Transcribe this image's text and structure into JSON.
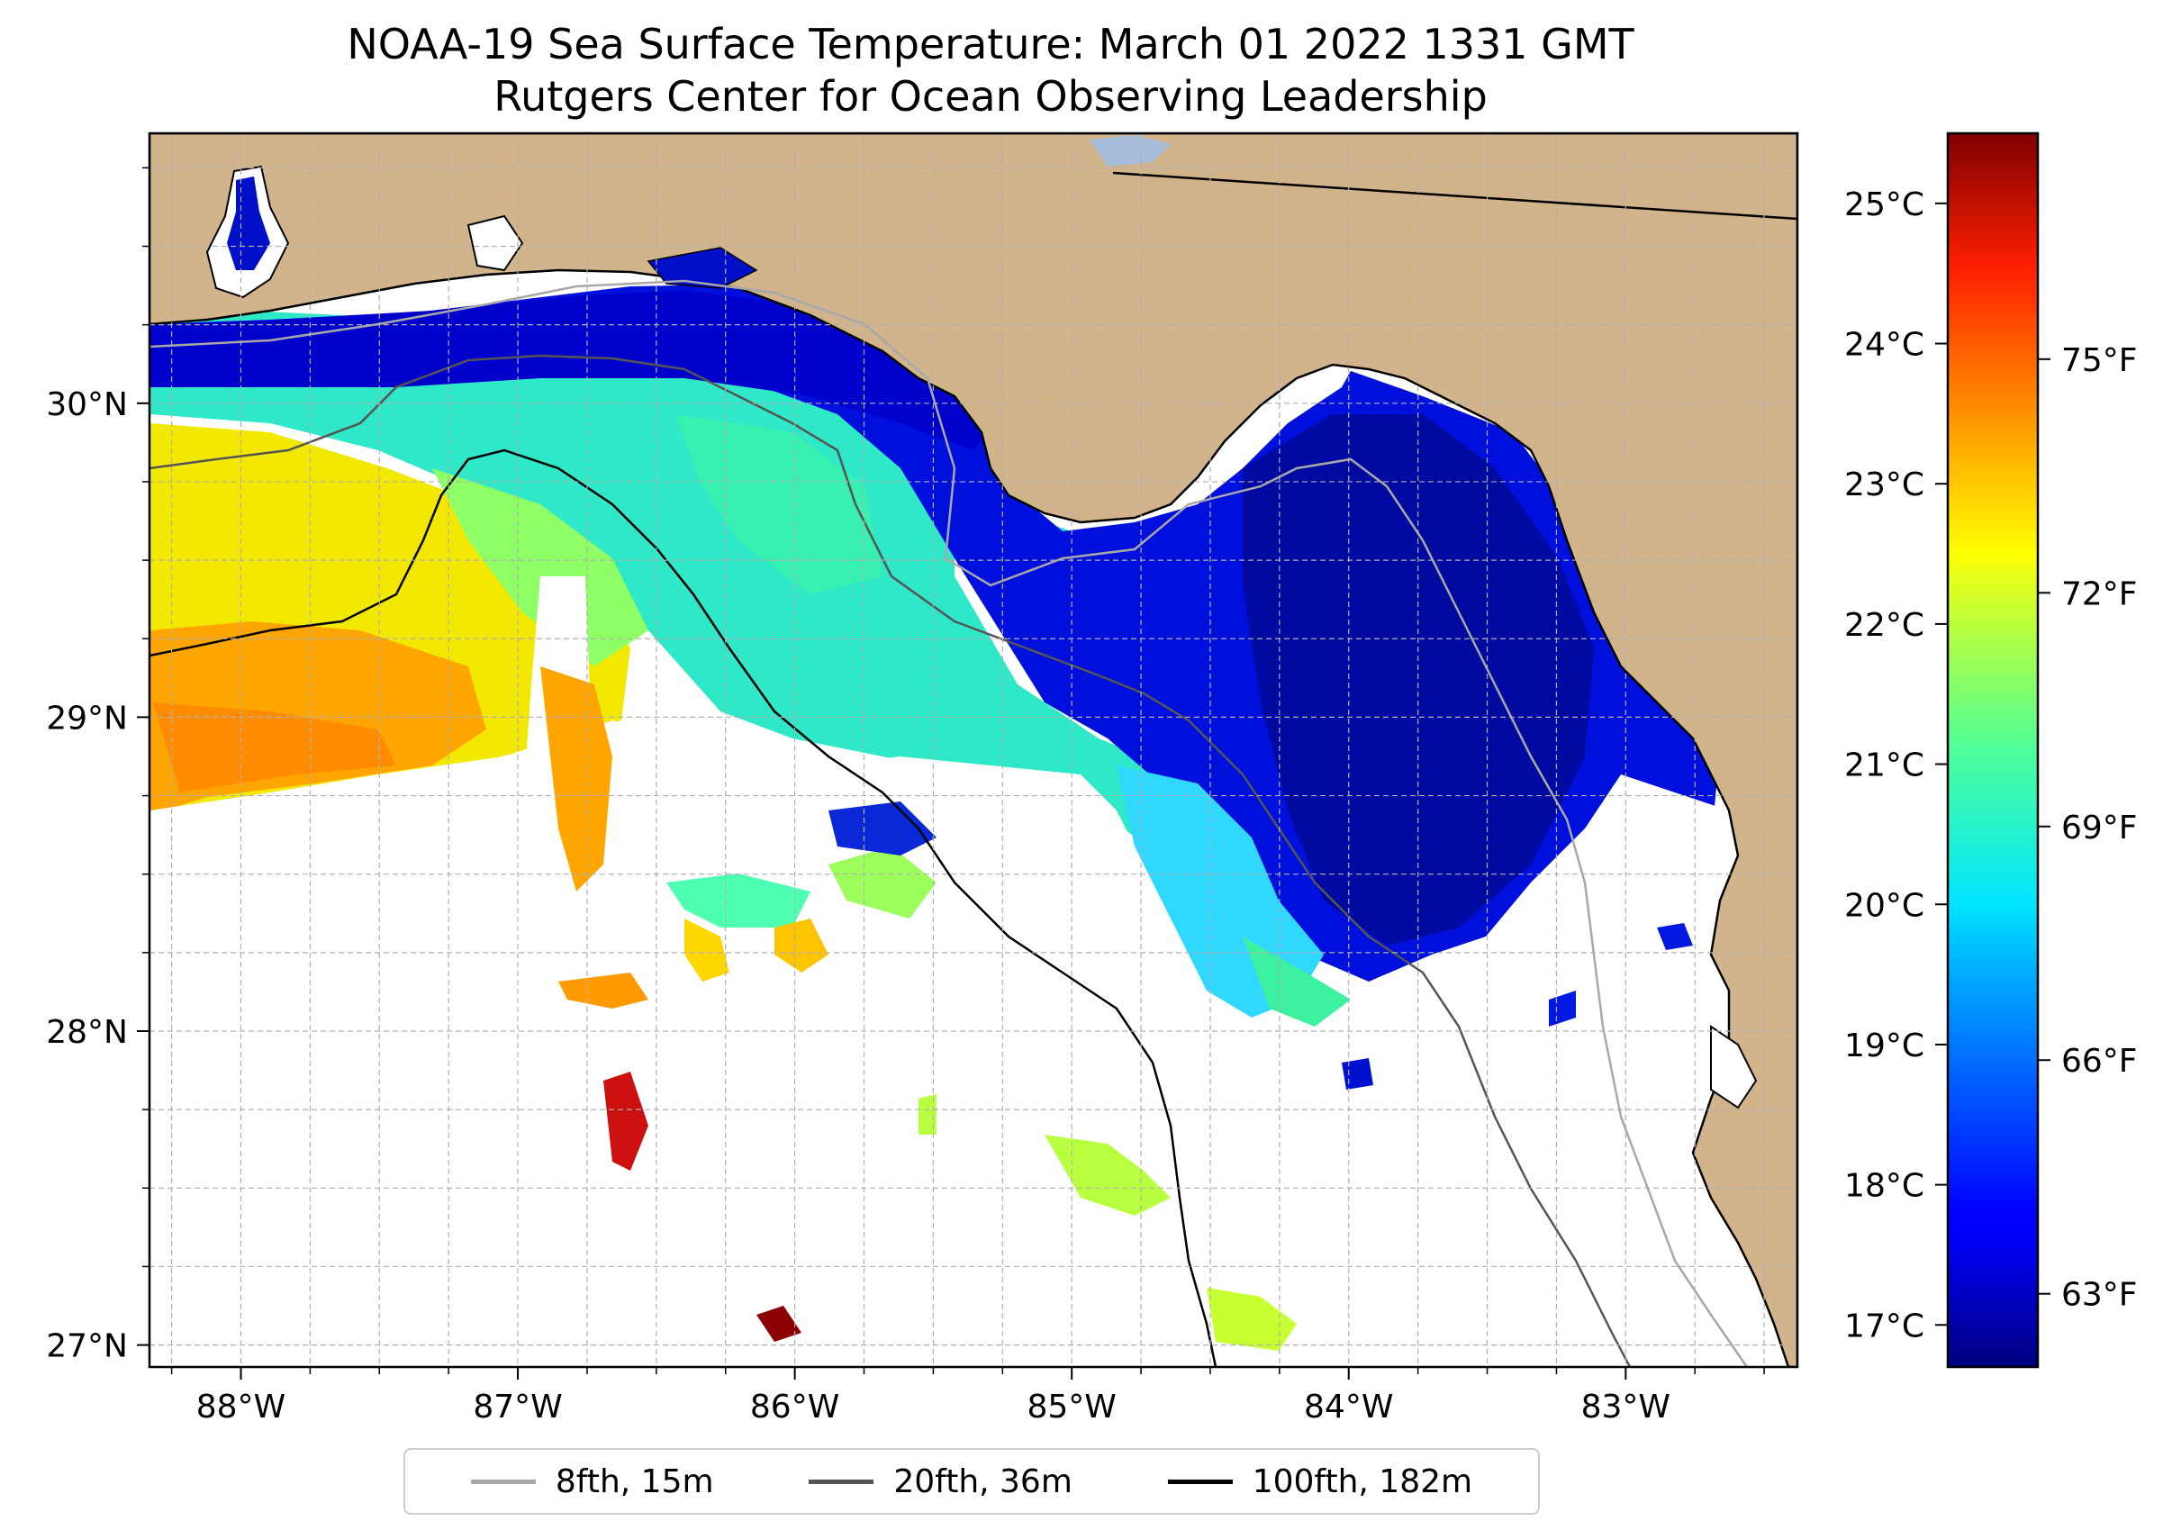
{
  "title": {
    "line1": "NOAA-19 Sea Surface Temperature: March 01 2022 1331 GMT",
    "line2": "Rutgers Center for Ocean Observing Leadership"
  },
  "map": {
    "extent": {
      "lon_min": -88.33,
      "lon_max": -82.38,
      "lat_min": 26.93,
      "lat_max": 30.86
    },
    "lat_ticks": [
      {
        "value": 30,
        "label": "30°N"
      },
      {
        "value": 29,
        "label": "29°N"
      },
      {
        "value": 28,
        "label": "28°N"
      },
      {
        "value": 27,
        "label": "27°N"
      }
    ],
    "lon_ticks": [
      {
        "value": -88,
        "label": "88°W"
      },
      {
        "value": -87,
        "label": "87°W"
      },
      {
        "value": -86,
        "label": "86°W"
      },
      {
        "value": -85,
        "label": "85°W"
      },
      {
        "value": -84,
        "label": "84°W"
      },
      {
        "value": -83,
        "label": "83°W"
      }
    ],
    "colors": {
      "land": "#d2b48c",
      "no_data": "#ffffff",
      "lake": "#a6bddb",
      "grid": "#b0b0b0"
    }
  },
  "colorbar": {
    "colormap": "jet",
    "celsius_ticks": [
      {
        "value": 25,
        "label": "25°C"
      },
      {
        "value": 24,
        "label": "24°C"
      },
      {
        "value": 23,
        "label": "23°C"
      },
      {
        "value": 22,
        "label": "22°C"
      },
      {
        "value": 21,
        "label": "21°C"
      },
      {
        "value": 20,
        "label": "20°C"
      },
      {
        "value": 19,
        "label": "19°C"
      },
      {
        "value": 18,
        "label": "18°C"
      },
      {
        "value": 17,
        "label": "17°C"
      }
    ],
    "fahrenheit_ticks": [
      {
        "value": 75,
        "label": "75°F"
      },
      {
        "value": 72,
        "label": "72°F"
      },
      {
        "value": 69,
        "label": "69°F"
      },
      {
        "value": 66,
        "label": "66°F"
      },
      {
        "value": 63,
        "label": "63°F"
      }
    ],
    "range_c": [
      16.7,
      25.5
    ]
  },
  "legend": {
    "items": [
      {
        "label": "8fth, 15m",
        "color": "#a8a8a8"
      },
      {
        "label": "20fth, 36m",
        "color": "#555555"
      },
      {
        "label": "100fth, 182m",
        "color": "#000000"
      }
    ]
  }
}
